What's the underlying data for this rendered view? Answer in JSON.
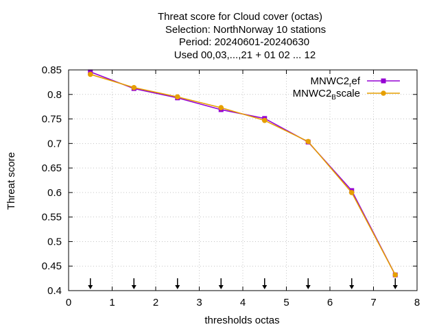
{
  "title_lines": [
    "Threat score  for Cloud cover (octas)",
    "Selection: NorthNorway      10 stations",
    "Period: 20240601-20240630",
    "Used 00,03,...,21 + 01 02 ... 12"
  ],
  "chart_data": {
    "type": "line",
    "xlabel": "thresholds octas",
    "ylabel": "Threat score",
    "xlim": [
      0,
      8
    ],
    "ylim": [
      0.4,
      0.85
    ],
    "x_ticks": [
      "0",
      "1",
      "2",
      "3",
      "4",
      "5",
      "6",
      "7",
      "8"
    ],
    "y_ticks": [
      "0.4",
      "0.45",
      "0.5",
      "0.55",
      "0.6",
      "0.65",
      "0.7",
      "0.75",
      "0.8",
      "0.85"
    ],
    "grid": true,
    "legend_position": "top-right",
    "x": [
      0.5,
      1.5,
      2.5,
      3.5,
      4.5,
      5.5,
      6.5,
      7.5
    ],
    "series": [
      {
        "legend_main": "MNWC2",
        "legend_sub": "r",
        "legend_tail": "ef",
        "color": "#9400d3",
        "marker": "square",
        "values": [
          0.846,
          0.812,
          0.793,
          0.769,
          0.751,
          0.703,
          0.604,
          0.432
        ]
      },
      {
        "legend_main": "MNWC2",
        "legend_sub": "B",
        "legend_tail": "scale",
        "color": "#e69f00",
        "marker": "circle",
        "values": [
          0.841,
          0.814,
          0.795,
          0.773,
          0.747,
          0.704,
          0.6,
          0.432
        ]
      }
    ],
    "arrow_markers_x": [
      0.5,
      1.5,
      2.5,
      3.5,
      4.5,
      5.5,
      6.5,
      7.5
    ]
  }
}
